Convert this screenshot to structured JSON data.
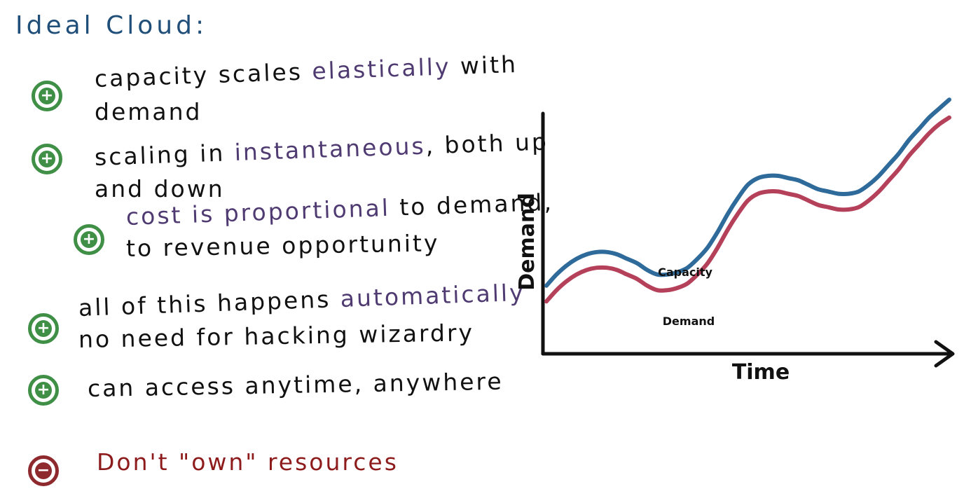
{
  "title": "Ideal Cloud:",
  "items": [
    {
      "kind": "pro",
      "icon": "plus-circle-icon",
      "lines": [
        [
          {
            "t": "capacity scales ",
            "h": false
          },
          {
            "t": "elastically",
            "h": true
          },
          {
            "t": " with",
            "h": false
          }
        ],
        [
          {
            "t": "demand",
            "h": false
          }
        ]
      ]
    },
    {
      "kind": "pro",
      "icon": "plus-circle-icon",
      "lines": [
        [
          {
            "t": "scaling in ",
            "h": false
          },
          {
            "t": "instantaneous",
            "h": true
          },
          {
            "t": ", both up",
            "h": false
          }
        ],
        [
          {
            "t": "and down",
            "h": false
          }
        ]
      ]
    },
    {
      "kind": "pro",
      "icon": "plus-circle-icon",
      "lines": [
        [
          {
            "t": "cost is proportional",
            "h": true
          },
          {
            "t": " to demand,",
            "h": false
          }
        ],
        [
          {
            "t": "to revenue opportunity",
            "h": false
          }
        ]
      ]
    },
    {
      "kind": "pro",
      "icon": "plus-circle-icon",
      "lines": [
        [
          {
            "t": "all of this happens ",
            "h": false
          },
          {
            "t": "automatically",
            "h": true
          }
        ],
        [
          {
            "t": "no need for hacking wizardry",
            "h": false
          }
        ]
      ]
    },
    {
      "kind": "pro",
      "icon": "plus-circle-icon",
      "lines": [
        [
          {
            "t": "can access anytime, anywhere",
            "h": false
          }
        ]
      ]
    },
    {
      "kind": "con",
      "icon": "minus-circle-icon",
      "lines": [
        [
          {
            "t": "Don't \"own\" resources",
            "h": false
          }
        ]
      ]
    }
  ],
  "colors": {
    "title": "#1f4e79",
    "highlight": "#4f3b72",
    "pro": "#3f8f46",
    "con": "#8e2a2e",
    "capacity": "#2e6a9a",
    "demand": "#b5405a"
  },
  "chart_data": {
    "type": "line",
    "xlabel": "Time",
    "ylabel": "Demand",
    "axis_ticks": false,
    "grid": false,
    "legend": "inline labels",
    "x": [
      0,
      1,
      2,
      3,
      4,
      5,
      6,
      7,
      8,
      9,
      10,
      11,
      12,
      13,
      14,
      15,
      16,
      17,
      18,
      19,
      20,
      21,
      22,
      23,
      24,
      25,
      26,
      27,
      28,
      29,
      30,
      31,
      32,
      33,
      34,
      35,
      36,
      37,
      38,
      39,
      40
    ],
    "xlim": [
      0,
      40
    ],
    "ylim": [
      0,
      100
    ],
    "series": [
      {
        "name": "Capacity",
        "color": "#2e6a9a",
        "values": [
          21,
          26,
          30,
          33,
          35,
          36,
          36,
          35,
          33,
          31,
          28,
          26,
          26,
          27,
          29,
          33,
          38,
          45,
          53,
          60,
          66,
          69,
          70,
          70,
          69,
          68,
          66,
          64,
          63,
          62,
          62,
          63,
          66,
          70,
          75,
          80,
          86,
          91,
          96,
          100,
          104
        ]
      },
      {
        "name": "Demand",
        "color": "#b5405a",
        "values": [
          14,
          19,
          23,
          26,
          28,
          29,
          29,
          28,
          26,
          24,
          21,
          19,
          19,
          20,
          22,
          26,
          31,
          38,
          46,
          53,
          59,
          62,
          63,
          63,
          62,
          61,
          59,
          57,
          56,
          55,
          55,
          56,
          59,
          63,
          68,
          73,
          79,
          84,
          89,
          93,
          96
        ]
      }
    ]
  }
}
